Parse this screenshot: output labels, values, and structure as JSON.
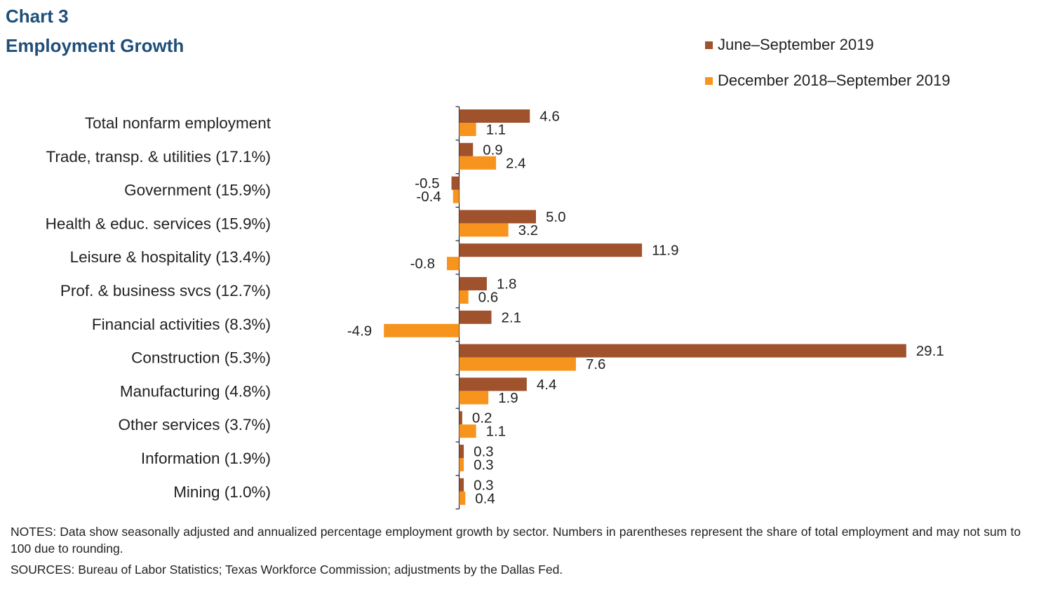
{
  "header": {
    "chart_number": "Chart 3",
    "title": "Employment Growth"
  },
  "chart_data": {
    "type": "bar",
    "orientation": "horizontal",
    "categories": [
      "Total nonfarm employment",
      "Trade, transp. & utilities (17.1%)",
      "Government (15.9%)",
      "Health & educ. services (15.9%)",
      "Leisure & hospitality (13.4%)",
      "Prof. & business svcs (12.7%)",
      "Financial activities (8.3%)",
      "Construction (5.3%)",
      "Manufacturing (4.8%)",
      "Other services (3.7%)",
      "Information (1.9%)",
      "Mining (1.0%)"
    ],
    "series": [
      {
        "name": "June–September 2019",
        "color": "#a0522d",
        "values": [
          4.6,
          0.9,
          -0.5,
          5.0,
          11.9,
          1.8,
          2.1,
          29.1,
          4.4,
          0.2,
          0.3,
          0.3
        ],
        "labels": [
          "4.6",
          "0.9",
          "-0.5",
          "5.0",
          "11.9",
          "1.8",
          "2.1",
          "29.1",
          "4.4",
          "0.2",
          "0.3",
          "0.3"
        ]
      },
      {
        "name": "December 2018–September 2019",
        "color": "#f7941d",
        "values": [
          1.1,
          2.4,
          -0.4,
          3.2,
          -0.8,
          0.6,
          -4.9,
          7.6,
          1.9,
          1.1,
          0.3,
          0.4
        ],
        "labels": [
          "1.1",
          "2.4",
          "-0.4",
          "3.2",
          "-0.8",
          "0.6",
          "-4.9",
          "7.6",
          "1.9",
          "1.1",
          "0.3",
          "0.4"
        ]
      }
    ],
    "legend_position": "top-right",
    "grid": false
  },
  "footer": {
    "notes": "NOTES: Data show seasonally adjusted and annualized percentage employment growth by sector. Numbers in parentheses represent the share of total employment and may not sum to 100 due to rounding.",
    "sources": "SOURCES: Bureau of Labor Statistics; Texas Workforce Commission; adjustments by the Dallas Fed."
  }
}
